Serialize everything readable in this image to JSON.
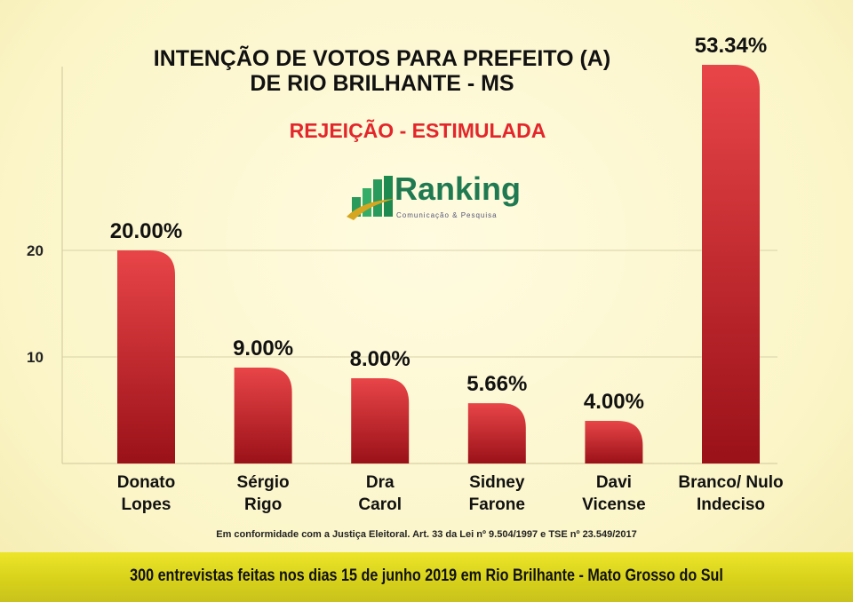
{
  "title_line1": "INTENÇÃO DE VOTOS PARA PREFEITO (A)",
  "title_line2": "DE RIO BRILHANTE - MS",
  "subtitle": "REJEIÇÃO - ESTIMULADA",
  "logo": {
    "name": "Ranking",
    "tagline": "Comunicação & Pesquisa"
  },
  "note": "Em conformidade com a Justiça Eleitoral. Art. 33 da Lei nº 9.504/1997 e TSE nº 23.549/2017",
  "footer": "300 entrevistas feitas nos dias 15 de junho 2019 em Rio Brilhante - Mato Grosso do Sul",
  "chart_data": {
    "type": "bar",
    "categories": [
      [
        "Donato",
        "Lopes"
      ],
      [
        "Sérgio",
        "Rigo"
      ],
      [
        "Dra",
        "Carol"
      ],
      [
        "Sidney",
        "Farone"
      ],
      [
        "Davi",
        "Vicense"
      ],
      [
        "Branco/ Nulo",
        "Indeciso"
      ]
    ],
    "values": [
      20.0,
      9.0,
      8.0,
      5.66,
      4.0,
      53.34
    ],
    "labels": [
      "20.00%",
      "9.00%",
      "8.00%",
      "5.66%",
      "4.00%",
      "53.34%"
    ],
    "yticks": [
      10,
      20
    ],
    "grid": true,
    "bar_color": "#c8202a"
  }
}
